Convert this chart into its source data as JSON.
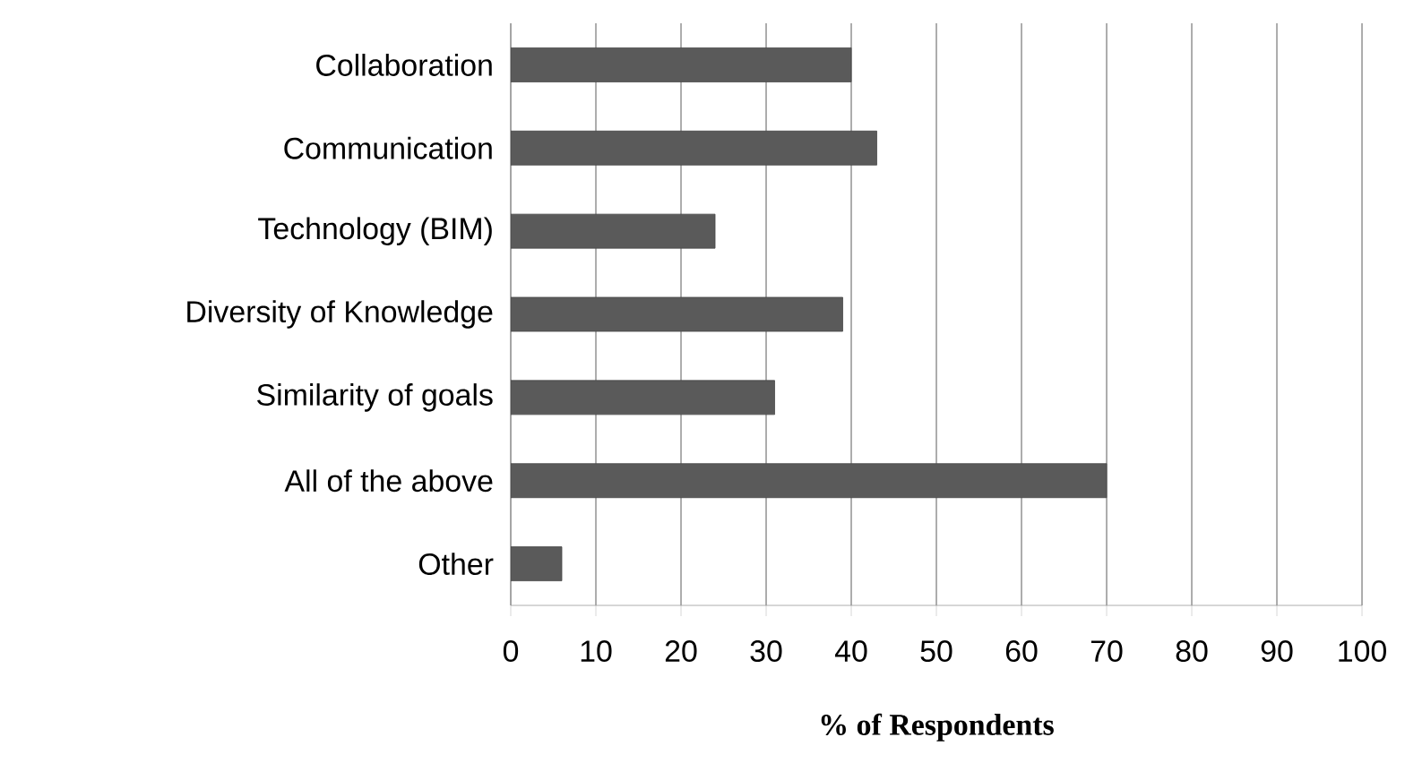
{
  "chart_data": {
    "type": "bar",
    "orientation": "horizontal",
    "xlabel": "**% of Respondents**",
    "categories": [
      "Collaboration",
      "Communication",
      "Technology (BIM)",
      "Diversity of Knowledge",
      "Similarity of goals",
      "All of the above",
      "Other"
    ],
    "values": [
      40,
      43,
      24,
      39,
      31,
      70,
      6
    ],
    "color": "#5a5a5a",
    "xlim": [
      0,
      100
    ],
    "xticks": [
      0,
      10,
      20,
      30,
      40,
      50,
      60,
      70,
      80,
      90,
      100
    ],
    "grid": "x"
  }
}
